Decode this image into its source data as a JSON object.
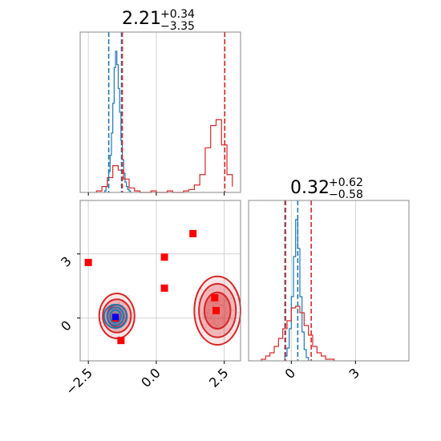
{
  "colors": {
    "blue": "#1f77b4",
    "red": "#d62728",
    "marker": "#ff0000",
    "truth_point": "#0000ff",
    "grid": "#d3d3d3",
    "scatter": "#bbbbbb"
  },
  "chart_data": {
    "type": "corner",
    "titles": {
      "param1": {
        "value": "2.21",
        "plus": "+0.34",
        "minus": "−3.35"
      },
      "param2": {
        "value": "0.32",
        "plus": "+0.62",
        "minus": "−0.58"
      }
    },
    "axes": {
      "x1_range": [
        -2.8,
        3.1
      ],
      "x2_range": [
        -2.0,
        5.5
      ],
      "x1_ticks": [
        -2.5,
        0.0,
        2.5
      ],
      "x1_tick_labels": [
        "−2.5",
        "0.0",
        "2.5"
      ],
      "y2_ticks": [
        0,
        3
      ],
      "y2_tick_labels": [
        "0",
        "3"
      ],
      "x2_ticks": [
        0,
        3
      ],
      "x2_tick_labels": [
        "0",
        "3"
      ],
      "grid": true
    },
    "hist1": {
      "blue": {
        "edges": [
          -1.9,
          -1.85,
          -1.8,
          -1.75,
          -1.7,
          -1.65,
          -1.6,
          -1.55,
          -1.5,
          -1.45,
          -1.4,
          -1.35,
          -1.3,
          -1.25,
          -1.2,
          -1.15,
          -1.1,
          -1.05,
          -1.0,
          -0.95
        ],
        "counts": [
          1,
          4,
          8,
          14,
          25,
          40,
          60,
          84,
          95,
          86,
          70,
          54,
          35,
          22,
          13,
          7,
          4,
          2,
          1
        ]
      },
      "red": {
        "edges": [
          -2.2,
          -2.0,
          -1.8,
          -1.6,
          -1.4,
          -1.2,
          -1.0,
          -0.8,
          -0.6,
          -0.4,
          -0.2,
          0.0,
          0.2,
          0.4,
          0.6,
          0.8,
          1.0,
          1.2,
          1.4,
          1.6,
          1.8,
          2.0,
          2.2,
          2.4,
          2.6,
          2.8
        ],
        "counts": [
          1,
          4,
          10,
          18,
          15,
          9,
          3,
          1,
          0,
          0,
          1,
          0,
          0,
          1,
          0,
          0,
          1,
          2,
          5,
          12,
          30,
          45,
          49,
          32,
          12,
          4
        ]
      },
      "blue_quantiles": [
        -1.75,
        -1.28
      ],
      "red_quantiles": [
        -1.25,
        2.52
      ]
    },
    "hist2": {
      "blue": {
        "edges": [
          -0.3,
          -0.2,
          -0.1,
          0.0,
          0.1,
          0.2,
          0.3,
          0.4,
          0.5,
          0.6,
          0.7,
          0.8
        ],
        "counts": [
          3,
          8,
          20,
          40,
          65,
          88,
          70,
          40,
          18,
          7,
          2
        ]
      },
      "red": {
        "edges": [
          -1.4,
          -1.2,
          -1.0,
          -0.8,
          -0.6,
          -0.4,
          -0.2,
          0.0,
          0.2,
          0.4,
          0.6,
          0.8,
          1.0,
          1.2,
          1.4,
          1.6,
          1.8,
          2.0
        ],
        "counts": [
          1,
          3,
          5,
          9,
          14,
          20,
          25,
          33,
          34,
          30,
          22,
          16,
          9,
          5,
          3,
          1,
          1
        ]
      },
      "blue_quantiles": [
        -0.3,
        0.3
      ],
      "red_quantiles": [
        -0.27,
        0.93
      ]
    },
    "joint": {
      "blue_contours": [
        {
          "cx": -1.5,
          "cy": 0.08,
          "rx": 0.42,
          "ry": 0.55
        },
        {
          "cx": -1.5,
          "cy": 0.08,
          "rx": 0.3,
          "ry": 0.42
        },
        {
          "cx": -1.5,
          "cy": 0.08,
          "rx": 0.2,
          "ry": 0.3
        }
      ],
      "red_clusters": [
        {
          "cx": -1.45,
          "cy": 0.1,
          "rx": [
            0.65,
            0.52,
            0.36
          ],
          "ry": [
            1.05,
            0.78,
            0.52
          ]
        },
        {
          "cx": 2.25,
          "cy": 0.35,
          "rx": [
            0.85,
            0.68,
            0.48
          ],
          "ry": [
            1.6,
            1.25,
            0.85
          ]
        }
      ],
      "markers": [
        {
          "x": -2.5,
          "y": 2.6
        },
        {
          "x": 0.3,
          "y": 2.85
        },
        {
          "x": 1.35,
          "y": 3.95
        },
        {
          "x": 0.3,
          "y": 1.4
        },
        {
          "x": 2.15,
          "y": 0.95
        },
        {
          "x": 2.2,
          "y": 0.35
        },
        {
          "x": -1.3,
          "y": -1.05
        },
        {
          "x": -1.5,
          "y": 0.0
        }
      ],
      "truth": {
        "x": -1.5,
        "y": 0.05
      }
    }
  }
}
